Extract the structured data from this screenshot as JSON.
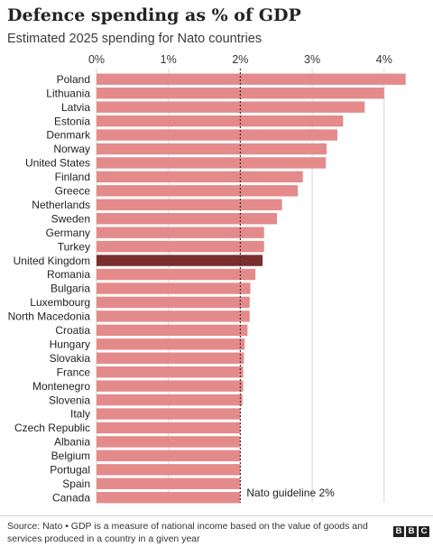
{
  "header": {
    "title": "Defence spending as % of GDP",
    "subtitle": "Estimated 2025 spending for Nato countries"
  },
  "footer": {
    "source": "Source: Nato • GDP is a measure of national income based on the value of goods and services produced in a country in a given year",
    "logo": [
      "B",
      "B",
      "C"
    ]
  },
  "colors": {
    "bar": "#e48a8a",
    "highlight": "#7a2e2e",
    "grid": "#d6d6d6",
    "guideline": "#333333"
  },
  "chart_data": {
    "type": "bar",
    "orientation": "horizontal",
    "title": "Defence spending as % of GDP",
    "subtitle": "Estimated 2025 spending for Nato countries",
    "xlim": [
      0,
      4.3
    ],
    "xticks": [
      0,
      1,
      2,
      3,
      4
    ],
    "xtick_labels": [
      "0%",
      "1%",
      "2%",
      "3%",
      "4%"
    ],
    "grid": true,
    "tick_position": "top",
    "categories": [
      "Poland",
      "Lithuania",
      "Latvia",
      "Estonia",
      "Denmark",
      "Norway",
      "United States",
      "Finland",
      "Greece",
      "Netherlands",
      "Sweden",
      "Germany",
      "Turkey",
      "United Kingdom",
      "Romania",
      "Bulgaria",
      "Luxembourg",
      "North Macedonia",
      "Croatia",
      "Hungary",
      "Slovakia",
      "France",
      "Montenegro",
      "Slovenia",
      "Italy",
      "Czech Republic",
      "Albania",
      "Belgium",
      "Portugal",
      "Spain",
      "Canada"
    ],
    "values": [
      4.3,
      4.0,
      3.73,
      3.43,
      3.35,
      3.2,
      3.19,
      2.87,
      2.8,
      2.58,
      2.51,
      2.33,
      2.33,
      2.31,
      2.21,
      2.14,
      2.13,
      2.13,
      2.1,
      2.06,
      2.05,
      2.04,
      2.04,
      2.03,
      2.0,
      2.0,
      2.0,
      2.0,
      2.0,
      2.0,
      2.0
    ],
    "highlight": "United Kingdom",
    "reference_line": {
      "value": 2,
      "label": "Nato guideline 2%"
    }
  }
}
